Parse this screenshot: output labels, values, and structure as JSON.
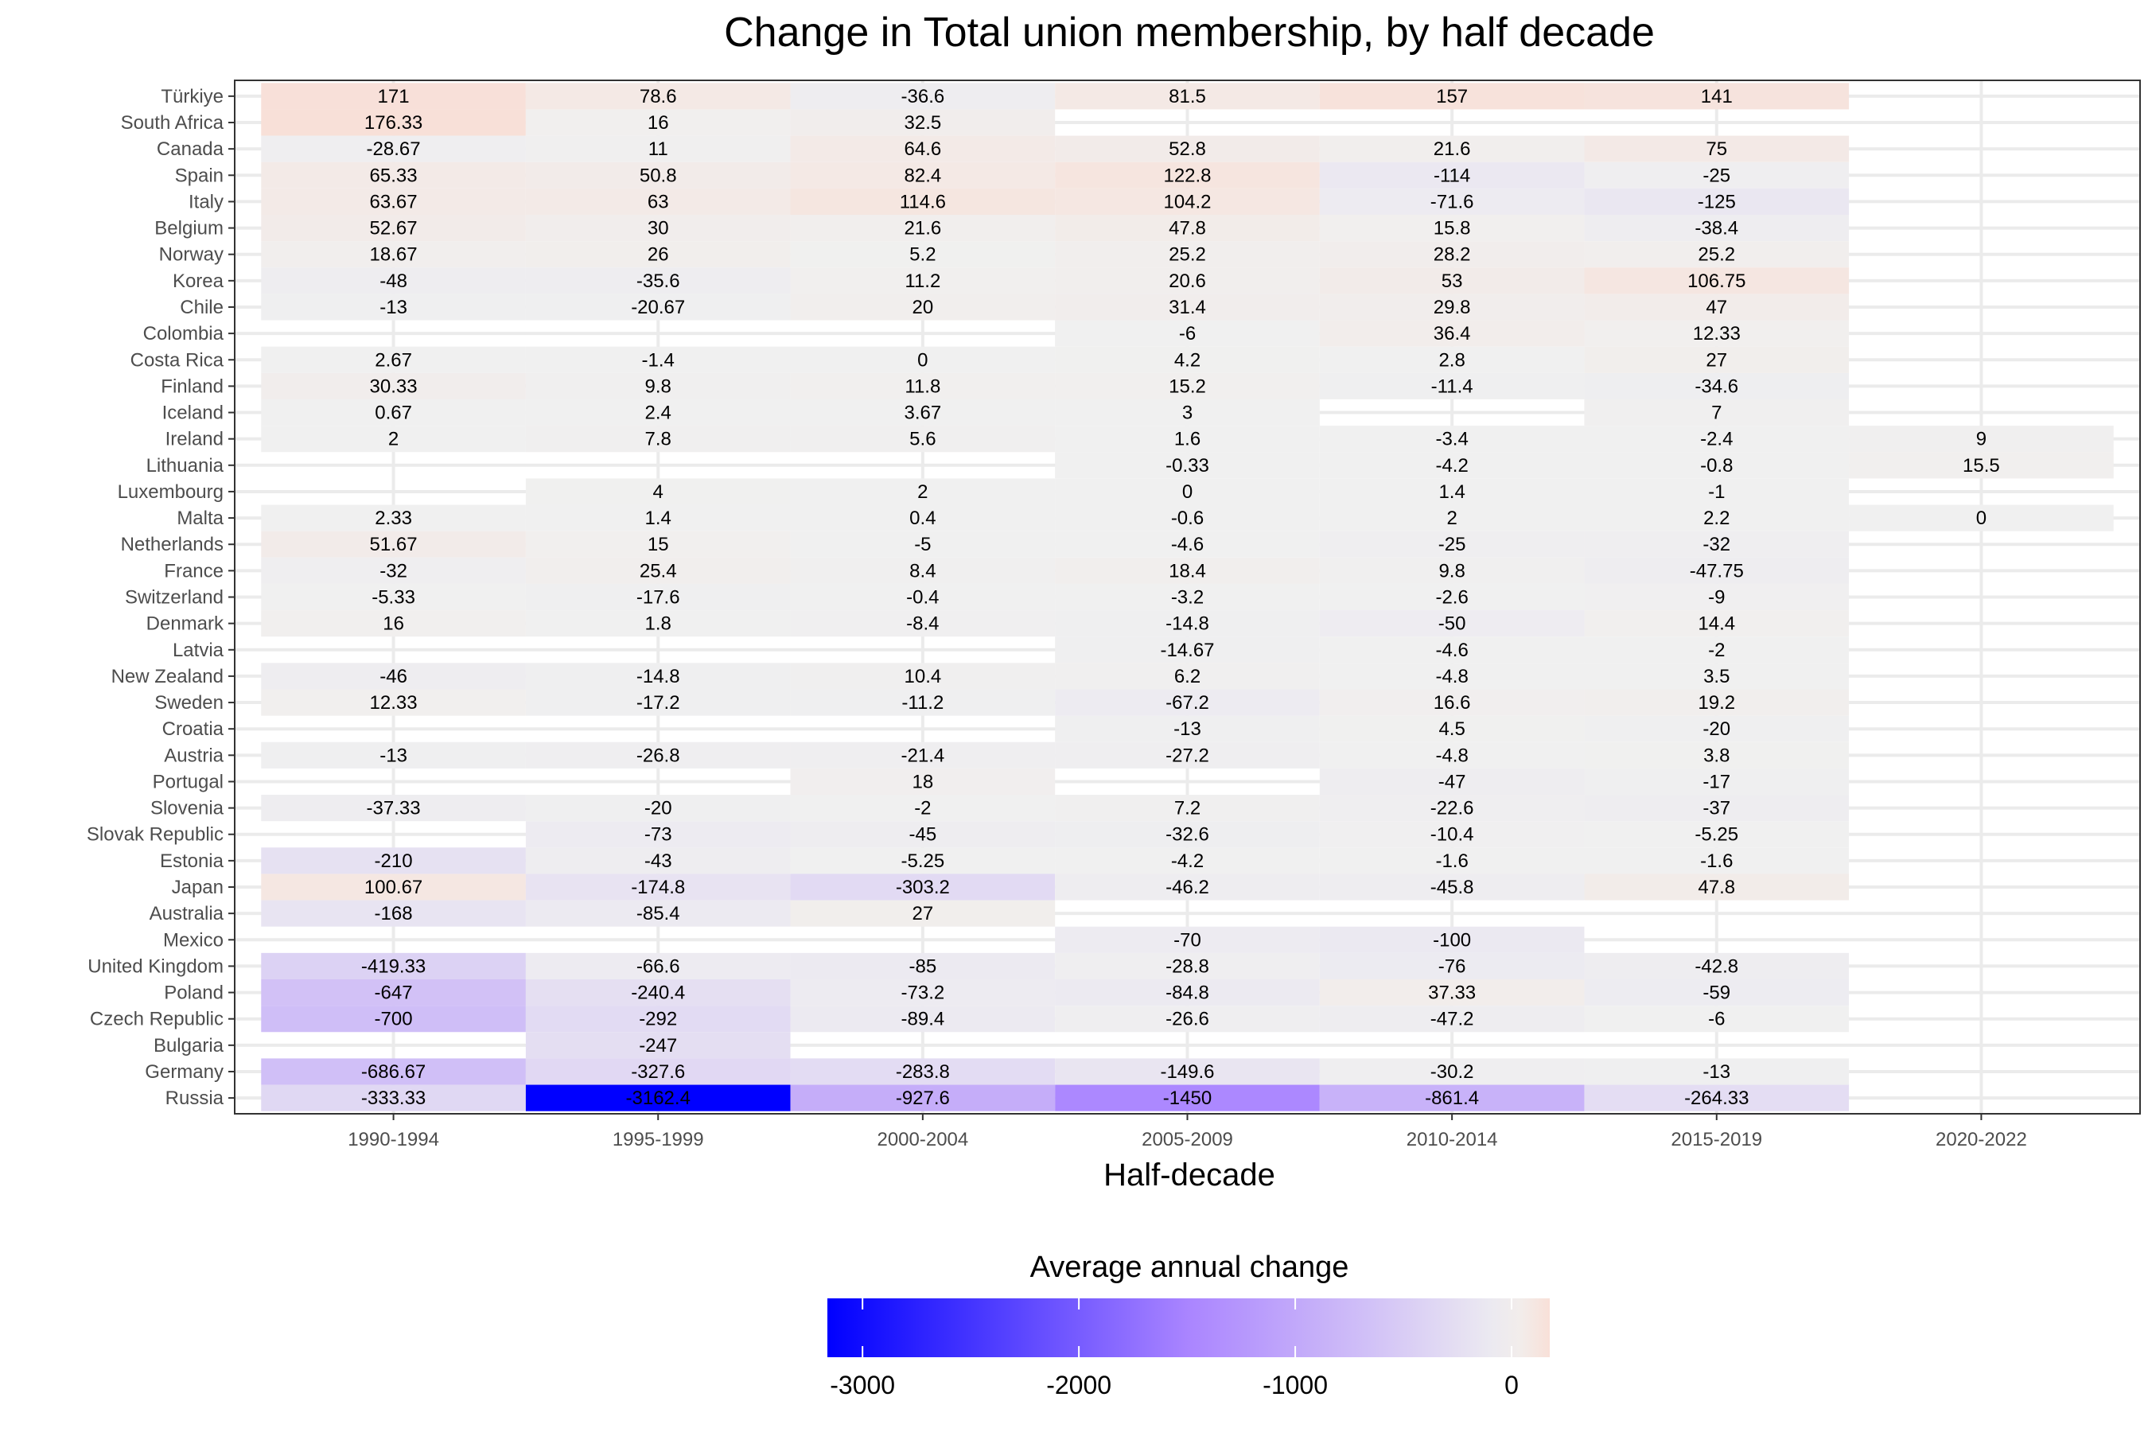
{
  "chart_data": {
    "type": "heatmap",
    "title": "Change in Total union membership, by half decade",
    "xlabel": "Half-decade",
    "ylabel": "",
    "x": [
      "1990-1994",
      "1995-1999",
      "2000-2004",
      "2005-2009",
      "2010-2014",
      "2015-2019",
      "2020-2022"
    ],
    "y": [
      "Türkiye",
      "South Africa",
      "Canada",
      "Spain",
      "Italy",
      "Belgium",
      "Norway",
      "Korea",
      "Chile",
      "Colombia",
      "Costa Rica",
      "Finland",
      "Iceland",
      "Ireland",
      "Lithuania",
      "Luxembourg",
      "Malta",
      "Netherlands",
      "France",
      "Switzerland",
      "Denmark",
      "Latvia",
      "New Zealand",
      "Sweden",
      "Croatia",
      "Austria",
      "Portugal",
      "Slovenia",
      "Slovak Republic",
      "Estonia",
      "Japan",
      "Australia",
      "Mexico",
      "United Kingdom",
      "Poland",
      "Czech Republic",
      "Bulgaria",
      "Germany",
      "Russia"
    ],
    "values": [
      [
        171,
        78.6,
        -36.6,
        81.5,
        157,
        141,
        null
      ],
      [
        176.33,
        16,
        32.5,
        null,
        null,
        null,
        null
      ],
      [
        -28.67,
        11,
        64.6,
        52.8,
        21.6,
        75,
        null
      ],
      [
        65.33,
        50.8,
        82.4,
        122.8,
        -114,
        -25,
        null
      ],
      [
        63.67,
        63,
        114.6,
        104.2,
        -71.6,
        -125,
        null
      ],
      [
        52.67,
        30,
        21.6,
        47.8,
        15.8,
        -38.4,
        null
      ],
      [
        18.67,
        26,
        5.2,
        25.2,
        28.2,
        25.2,
        null
      ],
      [
        -48,
        -35.6,
        11.2,
        20.6,
        53,
        106.75,
        null
      ],
      [
        -13,
        -20.67,
        20,
        31.4,
        29.8,
        47,
        null
      ],
      [
        null,
        null,
        null,
        -6,
        36.4,
        12.33,
        null
      ],
      [
        2.67,
        -1.4,
        0,
        4.2,
        2.8,
        27,
        null
      ],
      [
        30.33,
        9.8,
        11.8,
        15.2,
        -11.4,
        -34.6,
        null
      ],
      [
        0.67,
        2.4,
        3.67,
        3,
        null,
        7,
        null
      ],
      [
        2,
        7.8,
        5.6,
        1.6,
        -3.4,
        -2.4,
        9
      ],
      [
        null,
        null,
        null,
        -0.33,
        -4.2,
        -0.8,
        15.5
      ],
      [
        null,
        4,
        2,
        0,
        1.4,
        -1,
        null
      ],
      [
        2.33,
        1.4,
        0.4,
        -0.6,
        2,
        2.2,
        0
      ],
      [
        51.67,
        15,
        -5,
        -4.6,
        -25,
        -32,
        null
      ],
      [
        -32,
        25.4,
        8.4,
        18.4,
        9.8,
        -47.75,
        null
      ],
      [
        -5.33,
        -17.6,
        -0.4,
        -3.2,
        -2.6,
        -9,
        null
      ],
      [
        16,
        1.8,
        -8.4,
        -14.8,
        -50,
        14.4,
        null
      ],
      [
        null,
        null,
        null,
        -14.67,
        -4.6,
        -2,
        null
      ],
      [
        -46,
        -14.8,
        10.4,
        6.2,
        -4.8,
        3.5,
        null
      ],
      [
        12.33,
        -17.2,
        -11.2,
        -67.2,
        16.6,
        19.2,
        null
      ],
      [
        null,
        null,
        null,
        -13,
        4.5,
        -20,
        null
      ],
      [
        -13,
        -26.8,
        -21.4,
        -27.2,
        -4.8,
        3.8,
        null
      ],
      [
        null,
        null,
        18,
        null,
        -47,
        -17,
        null
      ],
      [
        -37.33,
        -20,
        -2,
        7.2,
        -22.6,
        -37,
        null
      ],
      [
        null,
        -73,
        -45,
        -32.6,
        -10.4,
        -5.25,
        null
      ],
      [
        -210,
        -43,
        -5.25,
        -4.2,
        -1.6,
        -1.6,
        null
      ],
      [
        100.67,
        -174.8,
        -303.2,
        -46.2,
        -45.8,
        47.8,
        null
      ],
      [
        -168,
        -85.4,
        27,
        null,
        null,
        null,
        null
      ],
      [
        null,
        null,
        null,
        -70,
        -100,
        null,
        null
      ],
      [
        -419.33,
        -66.6,
        -85,
        -28.8,
        -76,
        -42.8,
        null
      ],
      [
        -647,
        -240.4,
        -73.2,
        -84.8,
        37.33,
        -59,
        null
      ],
      [
        -700,
        -292,
        -89.4,
        -26.6,
        -47.2,
        -6,
        null
      ],
      [
        null,
        -247,
        null,
        null,
        null,
        null,
        null
      ],
      [
        -686.67,
        -327.6,
        -283.8,
        -149.6,
        -30.2,
        -13,
        null
      ],
      [
        -333.33,
        -3162.4,
        -927.6,
        -1450,
        -861.4,
        -264.33,
        null
      ]
    ],
    "labels": [
      [
        "171",
        "78.6",
        "-36.6",
        "81.5",
        "157",
        "141",
        null
      ],
      [
        "176.33",
        "16",
        "32.5",
        null,
        null,
        null,
        null
      ],
      [
        "-28.67",
        "11",
        "64.6",
        "52.8",
        "21.6",
        "75",
        null
      ],
      [
        "65.33",
        "50.8",
        "82.4",
        "122.8",
        "-114",
        "-25",
        null
      ],
      [
        "63.67",
        "63",
        "114.6",
        "104.2",
        "-71.6",
        "-125",
        null
      ],
      [
        "52.67",
        "30",
        "21.6",
        "47.8",
        "15.8",
        "-38.4",
        null
      ],
      [
        "18.67",
        "26",
        "5.2",
        "25.2",
        "28.2",
        "25.2",
        null
      ],
      [
        "-48",
        "-35.6",
        "11.2",
        "20.6",
        "53",
        "106.75",
        null
      ],
      [
        "-13",
        "-20.67",
        "20",
        "31.4",
        "29.8",
        "47",
        null
      ],
      [
        null,
        null,
        null,
        "-6",
        "36.4",
        "12.33",
        null
      ],
      [
        "2.67",
        "-1.4",
        "0",
        "4.2",
        "2.8",
        "27",
        null
      ],
      [
        "30.33",
        "9.8",
        "11.8",
        "15.2",
        "-11.4",
        "-34.6",
        null
      ],
      [
        "0.67",
        "2.4",
        "3.67",
        "3",
        null,
        "7",
        null
      ],
      [
        "2",
        "7.8",
        "5.6",
        "1.6",
        "-3.4",
        "-2.4",
        "9"
      ],
      [
        null,
        null,
        null,
        "-0.33",
        "-4.2",
        "-0.8",
        "15.5"
      ],
      [
        null,
        "4",
        "2",
        "0",
        "1.4",
        "-1",
        null
      ],
      [
        "2.33",
        "1.4",
        "0.4",
        "-0.6",
        "2",
        "2.2",
        "0"
      ],
      [
        "51.67",
        "15",
        "-5",
        "-4.6",
        "-25",
        "-32",
        null
      ],
      [
        "-32",
        "25.4",
        "8.4",
        "18.4",
        "9.8",
        "-47.75",
        null
      ],
      [
        "-5.33",
        "-17.6",
        "-0.4",
        "-3.2",
        "-2.6",
        "-9",
        null
      ],
      [
        "16",
        "1.8",
        "-8.4",
        "-14.8",
        "-50",
        "14.4",
        null
      ],
      [
        null,
        null,
        null,
        "-14.67",
        "-4.6",
        "-2",
        null
      ],
      [
        "-46",
        "-14.8",
        "10.4",
        "6.2",
        "-4.8",
        "3.5",
        null
      ],
      [
        "12.33",
        "-17.2",
        "-11.2",
        "-67.2",
        "16.6",
        "19.2",
        null
      ],
      [
        null,
        null,
        null,
        "-13",
        "4.5",
        "-20",
        null
      ],
      [
        "-13",
        "-26.8",
        "-21.4",
        "-27.2",
        "-4.8",
        "3.8",
        null
      ],
      [
        null,
        null,
        "18",
        null,
        "-47",
        "-17",
        null
      ],
      [
        "-37.33",
        "-20",
        "-2",
        "7.2",
        "-22.6",
        "-37",
        null
      ],
      [
        null,
        "-73",
        "-45",
        "-32.6",
        "-10.4",
        "-5.25",
        null
      ],
      [
        "-210",
        "-43",
        "-5.25",
        "-4.2",
        "-1.6",
        "-1.6",
        null
      ],
      [
        "100.67",
        "-174.8",
        "-303.2",
        "-46.2",
        "-45.8",
        "47.8",
        null
      ],
      [
        "-168",
        "-85.4",
        "27",
        null,
        null,
        null,
        null
      ],
      [
        null,
        null,
        null,
        "-70",
        "-100",
        null,
        null
      ],
      [
        "-419.33",
        "-66.6",
        "-85",
        "-28.8",
        "-76",
        "-42.8",
        null
      ],
      [
        "-647",
        "-240.4",
        "-73.2",
        "-84.8",
        "37.33",
        "-59",
        null
      ],
      [
        "-700",
        "-292",
        "-89.4",
        "-26.6",
        "-47.2",
        "-6",
        null
      ],
      [
        null,
        "-247",
        null,
        null,
        null,
        null,
        null
      ],
      [
        "-686.67",
        "-327.6",
        "-283.8",
        "-149.6",
        "-30.2",
        "-13",
        null
      ],
      [
        "-333.33",
        "-3162.4",
        "-927.6",
        "-1450",
        "-861.4",
        "-264.33",
        null
      ]
    ],
    "legend": {
      "title": "Average annual change",
      "position": "bottom",
      "ticks": [
        -3000,
        -2000,
        -1000,
        0
      ],
      "tick_labels": [
        "-3000",
        "-2000",
        "-1000",
        "0"
      ],
      "range": [
        -3162.4,
        176.33
      ],
      "colors": {
        "low": "#0000ff",
        "mid_low": "#aa84ff",
        "mid": "#f0f0f0",
        "high": "#f8e0d8"
      }
    },
    "grid": true,
    "colors": {
      "panel_border": "#333333",
      "grid": "#ebebeb",
      "tick_text": "#4d4d4d"
    }
  }
}
